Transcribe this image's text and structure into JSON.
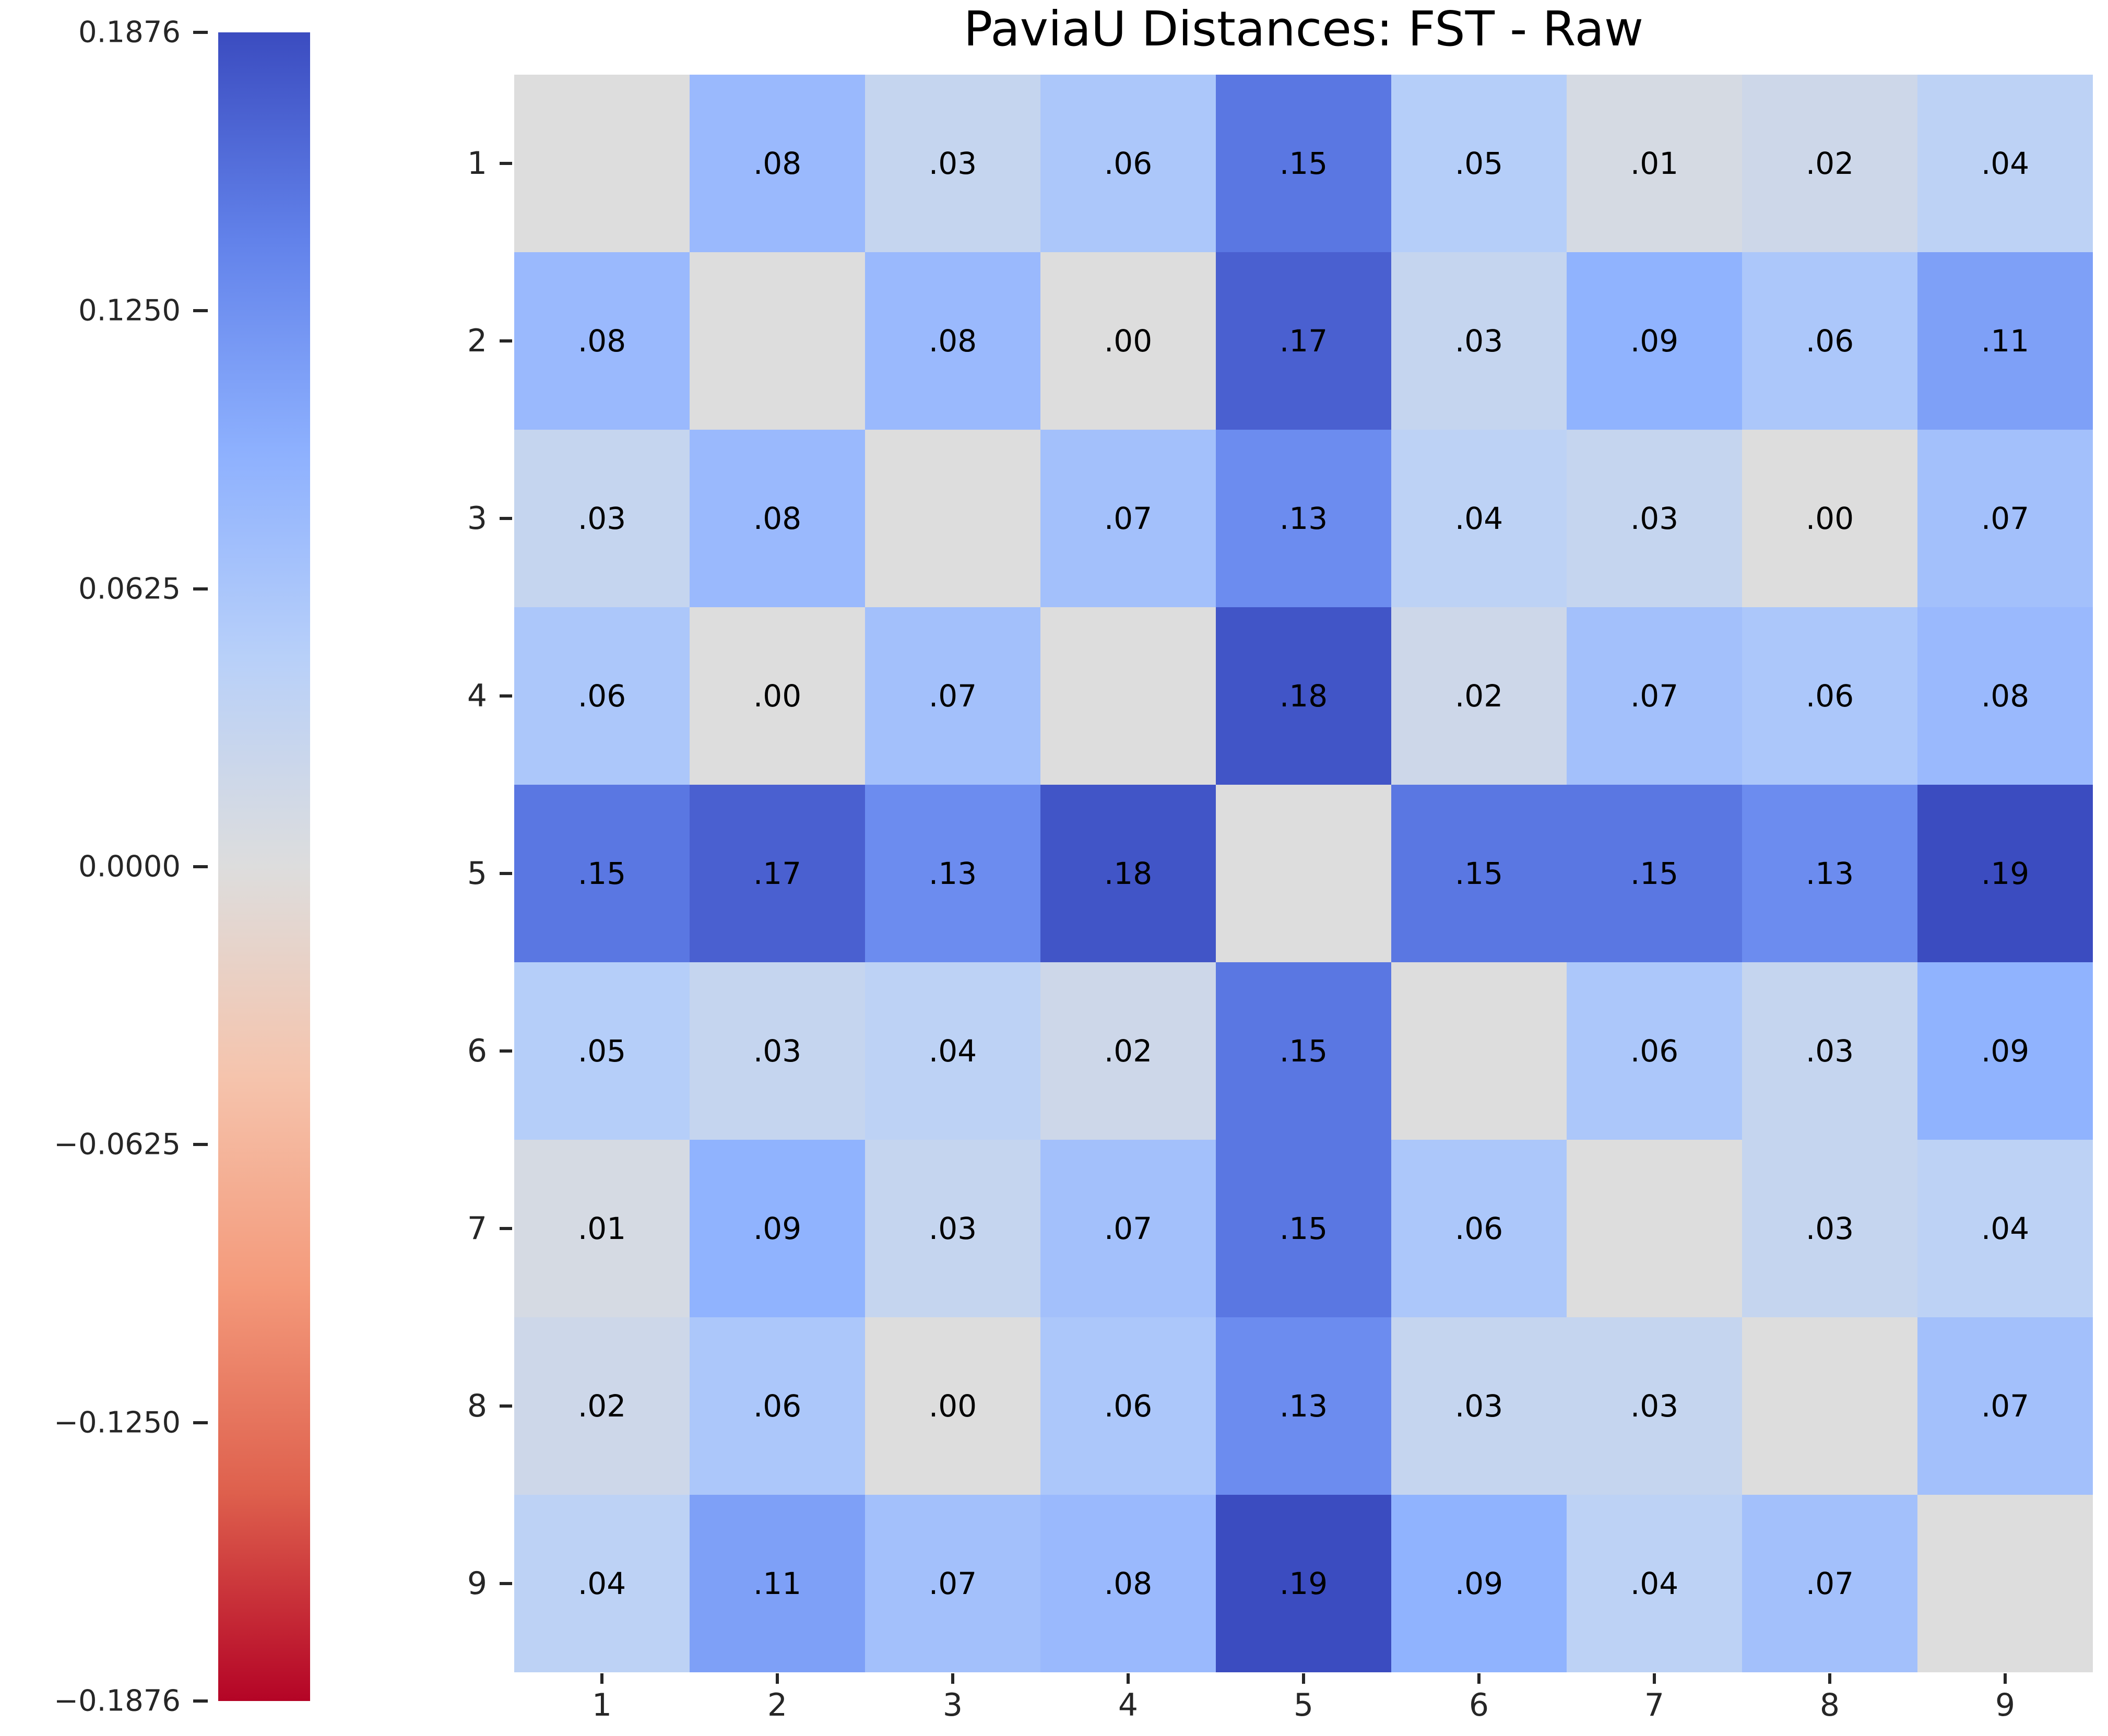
{
  "chart_data": {
    "type": "heatmap",
    "title": "PaviaU Distances: FST - Raw",
    "x_labels": [
      "1",
      "2",
      "3",
      "4",
      "5",
      "6",
      "7",
      "8",
      "9"
    ],
    "y_labels": [
      "1",
      "2",
      "3",
      "4",
      "5",
      "6",
      "7",
      "8",
      "9"
    ],
    "matrix": [
      [
        null,
        0.08,
        0.03,
        0.06,
        0.15,
        0.05,
        0.01,
        0.02,
        0.04
      ],
      [
        0.08,
        null,
        0.08,
        0.0,
        0.17,
        0.03,
        0.09,
        0.06,
        0.11
      ],
      [
        0.03,
        0.08,
        null,
        0.07,
        0.13,
        0.04,
        0.03,
        0.0,
        0.07
      ],
      [
        0.06,
        0.0,
        0.07,
        null,
        0.18,
        0.02,
        0.07,
        0.06,
        0.08
      ],
      [
        0.15,
        0.17,
        0.13,
        0.18,
        null,
        0.15,
        0.15,
        0.13,
        0.19
      ],
      [
        0.05,
        0.03,
        0.04,
        0.02,
        0.15,
        null,
        0.06,
        0.03,
        0.09
      ],
      [
        0.01,
        0.09,
        0.03,
        0.07,
        0.15,
        0.06,
        null,
        0.03,
        0.04
      ],
      [
        0.02,
        0.06,
        0.0,
        0.06,
        0.13,
        0.03,
        0.03,
        null,
        0.07
      ],
      [
        0.04,
        0.11,
        0.07,
        0.08,
        0.19,
        0.09,
        0.04,
        0.07,
        null
      ]
    ],
    "annotation_format": "two decimals without leading zero, e.g. .08",
    "vmin": -0.1876,
    "vmax": 0.1876,
    "colorbar": {
      "position": "left",
      "tick_values": [
        0.1876,
        0.125,
        0.0625,
        0.0,
        -0.0625,
        -0.125,
        -0.1876
      ],
      "tick_labels": [
        "0.1876",
        "0.1250",
        "0.0625",
        "0.0000",
        "−0.0625",
        "−0.1250",
        "−0.1876"
      ]
    },
    "colormap": {
      "name": "coolwarm reversed (high = blue, low = red)",
      "stops_top_to_bottom": [
        "#3B4CC0",
        "#6282EA",
        "#8DB0FE",
        "#B8D0F9",
        "#DDDDDD",
        "#F5C4AD",
        "#F49A7B",
        "#DE604D",
        "#B40426"
      ],
      "masked_cell_color": "#DDDDDD",
      "annotation_text_color": "#000000"
    },
    "grid": false,
    "background_color": "#FFFFFF"
  }
}
